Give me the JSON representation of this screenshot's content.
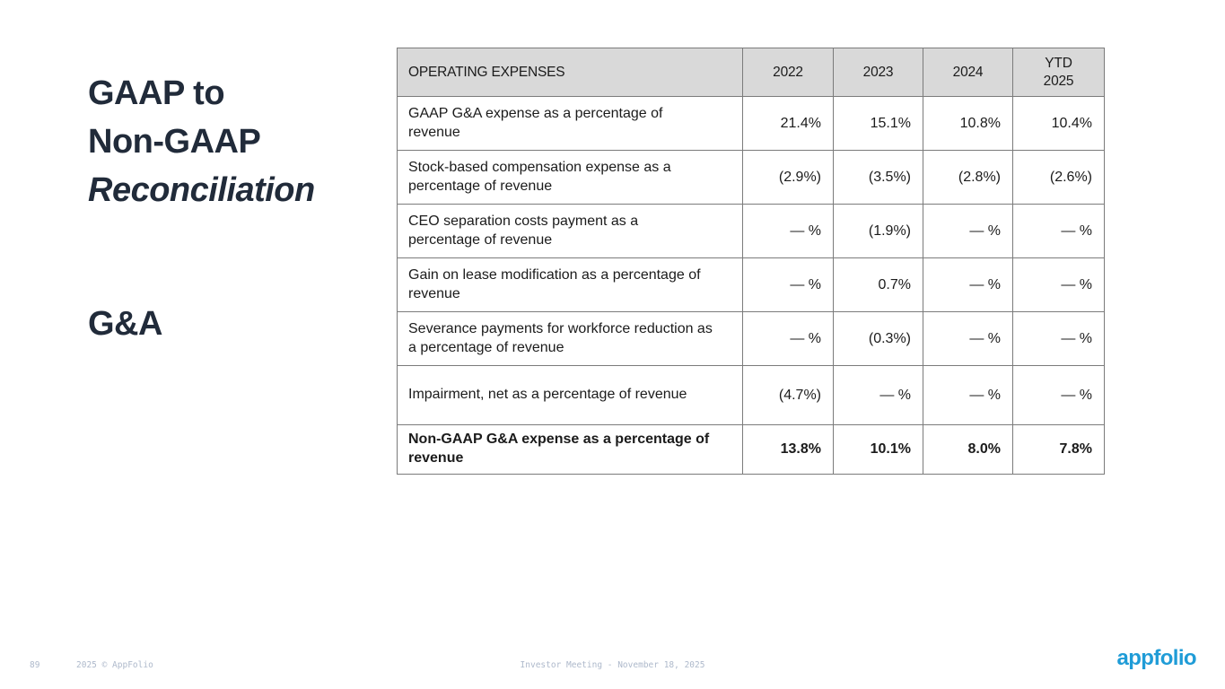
{
  "slide": {
    "title_lines": [
      "GAAP to",
      "Non-GAAP",
      "Reconciliation"
    ],
    "subtitle": "G&A"
  },
  "table": {
    "header": [
      "OPERATING EXPENSES",
      "2022",
      "2023",
      "2024",
      "YTD\n2025"
    ],
    "rows": [
      {
        "label": "GAAP G&A expense as a percentage of revenue",
        "values": [
          "21.4%",
          "15.1%",
          "10.8%",
          "10.4%"
        ],
        "bold": false
      },
      {
        "label": "Stock-based compensation expense as a percentage of revenue",
        "values": [
          "(2.9%)",
          "(3.5%)",
          "(2.8%)",
          "(2.6%)"
        ],
        "bold": false
      },
      {
        "label": "CEO separation costs payment as a percentage of revenue",
        "values": [
          "— %",
          "(1.9%)",
          "— %",
          "— %"
        ],
        "bold": false
      },
      {
        "label": "Gain on lease modification as a percentage of revenue",
        "values": [
          "— %",
          "0.7%",
          "— %",
          "— %"
        ],
        "bold": false
      },
      {
        "label": "Severance payments for workforce reduction as a percentage of revenue",
        "values": [
          "— %",
          "(0.3%)",
          "— %",
          "— %"
        ],
        "bold": false
      },
      {
        "label": "Impairment, net as a percentage of revenue",
        "values": [
          "(4.7%)",
          "— %",
          "— %",
          "— %"
        ],
        "bold": false
      },
      {
        "label": "Non-GAAP G&A expense as a percentage of revenue",
        "values": [
          "13.8%",
          "10.1%",
          "8.0%",
          "7.8%"
        ],
        "bold": true
      }
    ]
  },
  "footer": {
    "page_number": "89",
    "copyright": "2025 © AppFolio",
    "center_text": "Investor Meeting - November 18, 2025",
    "logo_text": "appfolio"
  },
  "colors": {
    "title_navy": "#212b3a",
    "header_bg": "#d9d9d9",
    "table_border": "#7b7b7b",
    "footer_text": "#aeb9cb",
    "logo_blue": "#1f9cd7"
  }
}
